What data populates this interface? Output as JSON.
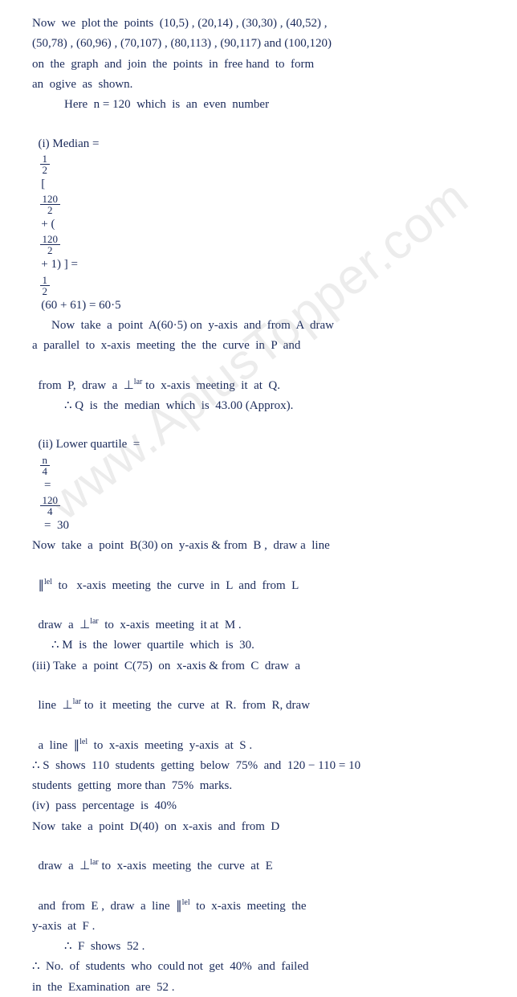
{
  "watermark": "www.AplusTopper.com",
  "text_color": "#1a2a5a",
  "bg_color": "#ffffff",
  "watermark_color": "rgba(150,150,150,0.18)",
  "font_family": "Comic Sans MS",
  "lines": {
    "l1": "Now  we  plot the  points  (10,5) , (20,14) , (30,30) , (40,52) ,",
    "l2": "(50,78) , (60,96) , (70,107) , (80,113) , (90,117) and (100,120)",
    "l3": "on  the  graph  and  join  the  points  in  free hand  to  form",
    "l4": "an  ogive  as  shown.",
    "l5": "Here  n = 120  which  is  an  even  number",
    "l6a": "(i) Median = ",
    "l6b": " [ ",
    "l6c": " + (",
    "l6d": " + 1) ] = ",
    "l6e": " (60 + 61) = 60·5",
    "l7": "Now  take  a  point  A(60·5) on  y-axis  and  from  A  draw",
    "l8": "a  parallel  to  x-axis  meeting  the  the  curve  in  P  and",
    "l9_a": "from  P,  draw  a  ⊥",
    "l9_b": " to  x-axis  meeting  it  at  Q.",
    "l10": "∴ Q  is  the  median  which  is  43.00 (Approx).",
    "l11a": "(ii) Lower quartile  =  ",
    "l11b": "  =  ",
    "l11c": "  =  30",
    "l12": "Now  take  a  point  B(30) on  y-axis & from  B ,  draw a  line",
    "l13_a": "∥",
    "l13_b": "  to   x-axis  meeting  the  curve  in  L  and  from  L",
    "l14_a": "draw  a  ⊥",
    "l14_b": "  to  x-axis  meeting  it at  M .",
    "l15": "∴ M  is  the  lower  quartile  which  is  30.",
    "l16": "(iii) Take  a  point  C(75)  on  x-axis & from  C  draw  a",
    "l17_a": "line  ⊥",
    "l17_b": " to  it  meeting  the  curve  at  R.  from  R, draw",
    "l18_a": "a  line  ∥",
    "l18_b": "  to  x-axis  meeting  y-axis  at  S .",
    "l19": "∴ S  shows  110  students  getting  below  75%  and  120 − 110 = 10",
    "l20": "students  getting  more than  75%  marks.",
    "l21": "(iv)  pass  percentage  is  40%",
    "l22": "Now  take  a  point  D(40)  on  x-axis  and  from  D",
    "l23_a": "draw  a  ⊥",
    "l23_b": " to  x-axis  meeting  the  curve  at  E",
    "l24_a": "and  from  E ,  draw  a  line  ∥",
    "l24_b": "  to  x-axis  meeting  the",
    "l25": "y-axis  at  F .",
    "l26": "∴  F  shows  52 .",
    "l27": "∴  No.  of  students  who  could not  get  40%  and  failed",
    "l28": "in  the  Examination  are  52 .",
    "frac_half_n": "1",
    "frac_half_d": "2",
    "frac_120_2_n": "120",
    "frac_120_2_d": "2",
    "frac_n_4_n": "n",
    "frac_n_4_d": "4",
    "frac_120_4_n": "120",
    "frac_120_4_d": "4",
    "sup_lar": "lar",
    "sup_lel": "lel"
  }
}
